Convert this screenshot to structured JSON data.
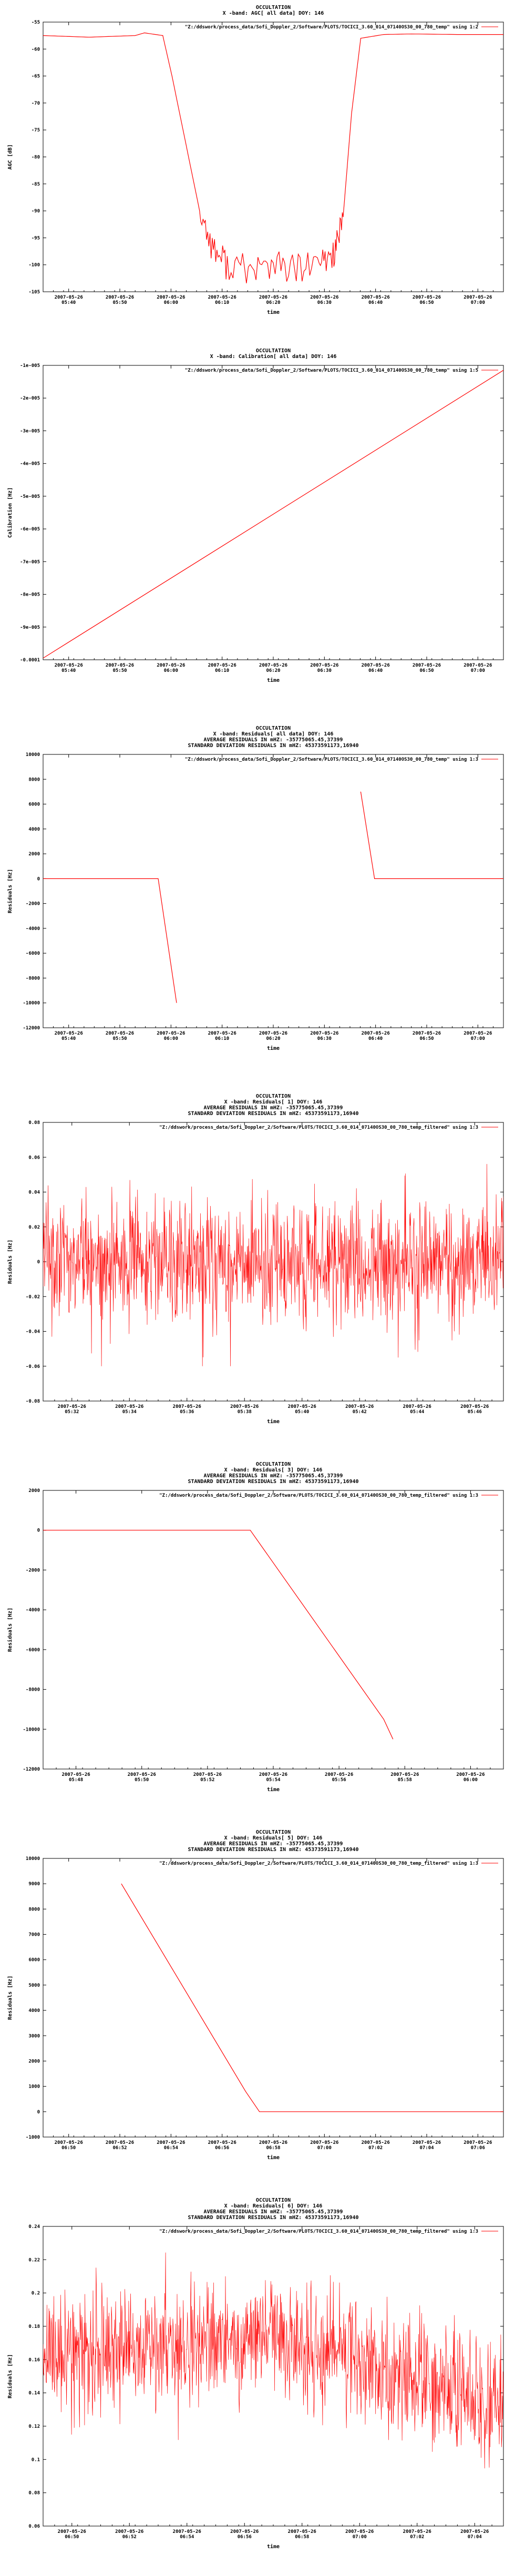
{
  "colors": {
    "series": "#ff0000",
    "axis": "#000000",
    "background": "#ffffff"
  },
  "chart_data": [
    {
      "type": "line",
      "title": [
        "OCCULTATION",
        "X -band: AGC[ all data] DOY: 146"
      ],
      "legend": {
        "label": "\"Z:/ddswork/process_data/Sofi_Doppler_2/Software/PLOTS/TOCICI_3.60_014_07140OS30_00_780_temp\" using 1:2",
        "position": "top-right"
      },
      "xlabel": "time",
      "ylabel": "AGC [dB]",
      "x_ticks": [
        "2007-05-26\n05:40",
        "2007-05-26\n05:50",
        "2007-05-26\n06:00",
        "2007-05-26\n06:10",
        "2007-05-26\n06:20",
        "2007-05-26\n06:30",
        "2007-05-26\n06:40",
        "2007-05-26\n06:50",
        "2007-05-26\n07:00"
      ],
      "y_ticks": [
        "-55",
        "-60",
        "-65",
        "-70",
        "-75",
        "-80",
        "-85",
        "-90",
        "-95",
        "-100",
        "-105"
      ],
      "ylim": [
        -105,
        -55
      ],
      "grid": false,
      "series": [
        {
          "x": [
            0,
            0.1,
            0.2,
            0.22,
            0.26,
            0.28,
            0.34,
            0.37,
            0.4,
            0.45,
            0.5,
            0.55,
            0.6,
            0.63,
            0.65,
            0.67,
            0.69,
            0.74,
            0.8,
            0.9,
            1.0
          ],
          "y": [
            -57.5,
            -57.8,
            -57.5,
            -57,
            -57.5,
            -65,
            -90,
            -97,
            -100,
            -101,
            -100,
            -101,
            -100,
            -98,
            -93,
            -72,
            -58,
            -57.3,
            -57.2,
            -57.3,
            -57.3
          ]
        }
      ]
    },
    {
      "type": "line",
      "title": [
        "OCCULTATION",
        "X -band: Calibration[ all data] DOY: 146"
      ],
      "legend": {
        "label": "\"Z:/ddswork/process_data/Sofi_Doppler_2/Software/PLOTS/TOCICI_3.60_014_07140OS30_00_780_temp\" using 1:5",
        "position": "top-right"
      },
      "xlabel": "time",
      "ylabel": "Calibration [Hz]",
      "x_ticks": [
        "2007-05-26\n05:40",
        "2007-05-26\n05:50",
        "2007-05-26\n06:00",
        "2007-05-26\n06:10",
        "2007-05-26\n06:20",
        "2007-05-26\n06:30",
        "2007-05-26\n06:40",
        "2007-05-26\n06:50",
        "2007-05-26\n07:00"
      ],
      "y_ticks": [
        "-1e-005",
        "-2e-005",
        "-3e-005",
        "-4e-005",
        "-5e-005",
        "-6e-005",
        "-7e-005",
        "-8e-005",
        "-9e-005",
        "-0.0001"
      ],
      "ylim": [
        -0.0001,
        -1e-05
      ],
      "grid": false,
      "series": [
        {
          "x": [
            0,
            1
          ],
          "y": [
            -9.95e-05,
            -1.15e-05
          ]
        }
      ]
    },
    {
      "type": "line",
      "title": [
        "OCCULTATION",
        "X -band: Residuals[ all data] DOY: 146",
        "AVERAGE RESIDUALS IN mHZ: -35775065.45,37399",
        "STANDARD DEVIATION RESIDUALS IN mHZ: 45373591173,16940"
      ],
      "legend": {
        "label": "\"Z:/ddswork/process_data/Sofi_Doppler_2/Software/PLOTS/TOCICI_3.60_014_07140OS30_00_780_temp\" using 1:3",
        "position": "top-right"
      },
      "xlabel": "time",
      "ylabel": "Residuals [Hz]",
      "x_ticks": [
        "2007-05-26\n05:40",
        "2007-05-26\n05:50",
        "2007-05-26\n06:00",
        "2007-05-26\n06:10",
        "2007-05-26\n06:20",
        "2007-05-26\n06:30",
        "2007-05-26\n06:40",
        "2007-05-26\n06:50",
        "2007-05-26\n07:00"
      ],
      "y_ticks": [
        "10000",
        "8000",
        "6000",
        "4000",
        "2000",
        "0",
        "-2000",
        "-4000",
        "-6000",
        "-8000",
        "-10000",
        "-12000"
      ],
      "ylim": [
        -12000,
        10000
      ],
      "grid": false,
      "series": [
        {
          "segments": [
            {
              "x": [
                0,
                0.25,
                0.29
              ],
              "y": [
                0,
                0,
                -10000
              ]
            },
            {
              "x": [
                0.69,
                0.72,
                1.0
              ],
              "y": [
                7000,
                0,
                0
              ]
            }
          ]
        }
      ]
    },
    {
      "type": "line",
      "title": [
        "OCCULTATION",
        "X -band: Residuals[ 1] DOY: 146",
        "AVERAGE RESIDUALS IN mHZ: -35775065.45,37399",
        "STANDARD DEVIATION RESIDUALS IN mHZ: 45373591173,16940"
      ],
      "legend": {
        "label": "\"Z:/ddswork/process_data/Sofi_Doppler_2/Software/PLOTS/TOCICI_3.60_014_07140OS30_00_780_temp_filtered\" using 1:3",
        "position": "top-right"
      },
      "xlabel": "time",
      "ylabel": "Residuals [Hz]",
      "x_ticks": [
        "2007-05-26\n05:32",
        "2007-05-26\n05:34",
        "2007-05-26\n05:36",
        "2007-05-26\n05:38",
        "2007-05-26\n05:40",
        "2007-05-26\n05:42",
        "2007-05-26\n05:44",
        "2007-05-26\n05:46"
      ],
      "y_ticks": [
        "0.08",
        "0.06",
        "0.04",
        "0.02",
        "0",
        "-0.02",
        "-0.04",
        "-0.06",
        "-0.08"
      ],
      "ylim": [
        -0.08,
        0.08
      ],
      "grid": false,
      "series": [
        {
          "noise": {
            "mean": 0.0,
            "std": 0.018,
            "min": -0.06,
            "max": 0.06,
            "samples": 1200
          }
        }
      ]
    },
    {
      "type": "line",
      "title": [
        "OCCULTATION",
        "X -band: Residuals[ 3] DOY: 146",
        "AVERAGE RESIDUALS IN mHZ: -35775065.45,37399",
        "STANDARD DEVIATION RESIDUALS IN mHZ: 45373591173,16940"
      ],
      "legend": {
        "label": "\"Z:/ddswork/process_data/Sofi_Doppler_2/Software/PLOTS/TOCICI_3.60_014_07140OS30_00_780_temp_filtered\" using 1:3",
        "position": "top-right"
      },
      "xlabel": "time",
      "ylabel": "Residuals [Hz]",
      "x_ticks": [
        "2007-05-26\n05:48",
        "2007-05-26\n05:50",
        "2007-05-26\n05:52",
        "2007-05-26\n05:54",
        "2007-05-26\n05:56",
        "2007-05-26\n05:58",
        "2007-05-26\n06:00"
      ],
      "y_ticks": [
        "2000",
        "0",
        "-2000",
        "-4000",
        "-6000",
        "-8000",
        "-10000",
        "-12000"
      ],
      "ylim": [
        -12000,
        2000
      ],
      "grid": false,
      "series": [
        {
          "x": [
            0,
            0.45,
            0.74,
            0.76
          ],
          "y": [
            0,
            0,
            -9500,
            -10500
          ]
        }
      ]
    },
    {
      "type": "line",
      "title": [
        "OCCULTATION",
        "X -band: Residuals[ 5] DOY: 146",
        "AVERAGE RESIDUALS IN mHZ: -35775065.45,37399",
        "STANDARD DEVIATION RESIDUALS IN mHZ: 45373591173,16940"
      ],
      "legend": {
        "label": "\"Z:/ddswork/process_data/Sofi_Doppler_2/Software/PLOTS/TOCICI_3.60_014_07140OS30_00_780_temp_filtered\" using 1:3",
        "position": "top-right"
      },
      "xlabel": "time",
      "ylabel": "Residuals [Hz]",
      "x_ticks": [
        "2007-05-26\n06:50",
        "2007-05-26\n06:52",
        "2007-05-26\n06:54",
        "2007-05-26\n06:56",
        "2007-05-26\n06:58",
        "2007-05-26\n07:00",
        "2007-05-26\n07:02",
        "2007-05-26\n07:04",
        "2007-05-26\n07:06"
      ],
      "y_ticks": [
        "10000",
        "9000",
        "8000",
        "7000",
        "6000",
        "5000",
        "4000",
        "3000",
        "2000",
        "1000",
        "0",
        "-1000"
      ],
      "ylim": [
        -1000,
        10000
      ],
      "grid": false,
      "series": [
        {
          "x": [
            0.17,
            0.44,
            0.47,
            0.55,
            1.0
          ],
          "y": [
            9000,
            800,
            0,
            0,
            0
          ]
        }
      ]
    },
    {
      "type": "line",
      "title": [
        "OCCULTATION",
        "X -band: Residuals[ 6] DOY: 146",
        "AVERAGE RESIDUALS IN mHZ: -35775065.45,37399",
        "STANDARD DEVIATION RESIDUALS IN mHZ: 45373591173,16940"
      ],
      "legend": {
        "label": "\"Z:/ddswork/process_data/Sofi_Doppler_2/Software/PLOTS/TOCICI_3.60_014_07140OS30_00_780_temp_filtered\" using 1:3",
        "position": "top-right"
      },
      "xlabel": "time",
      "ylabel": "Residuals [Hz]",
      "x_ticks": [
        "2007-05-26\n06:50",
        "2007-05-26\n06:52",
        "2007-05-26\n06:54",
        "2007-05-26\n06:56",
        "2007-05-26\n06:58",
        "2007-05-26\n07:00",
        "2007-05-26\n07:02",
        "2007-05-26\n07:04"
      ],
      "y_ticks": [
        "0.24",
        "0.22",
        "0.2",
        "0.18",
        "0.16",
        "0.14",
        "0.12",
        "0.1",
        "0.08",
        "0.06"
      ],
      "ylim": [
        0.06,
        0.24
      ],
      "grid": false,
      "series": [
        {
          "noise": {
            "mean_start": 0.16,
            "mean_mid": 0.175,
            "mean_end": 0.13,
            "std": 0.018,
            "min": 0.07,
            "max": 0.23,
            "samples": 1200
          }
        }
      ]
    }
  ]
}
